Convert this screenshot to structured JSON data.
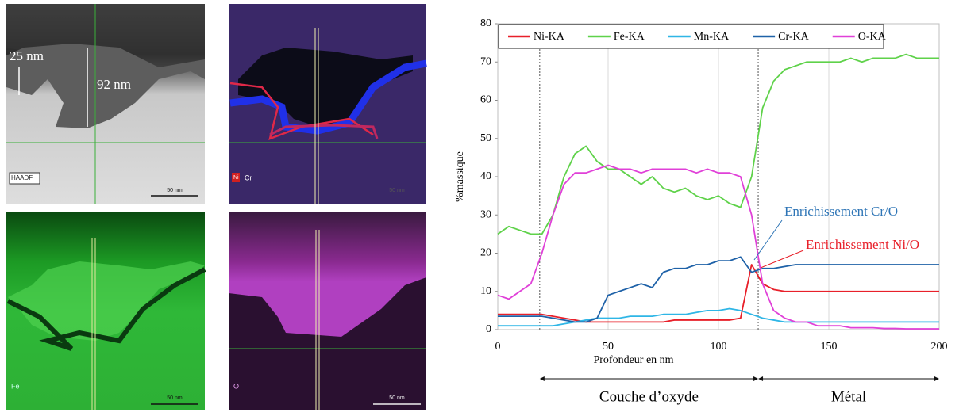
{
  "micrographs": [
    {
      "label": "HAADF",
      "scale": "50 nm"
    },
    {
      "label": "Cr",
      "tag": "Ni",
      "scale": "50 nm"
    },
    {
      "label": "Fe",
      "scale": "50 nm"
    },
    {
      "label": "O",
      "scale": "50 nm"
    }
  ],
  "dimensions": [
    "25 nm",
    "92 nm"
  ],
  "chart_data": {
    "type": "line",
    "xlabel": "Profondeur en nm",
    "ylabel": "%massique",
    "xlim": [
      0,
      200
    ],
    "ylim": [
      0,
      80
    ],
    "xticks": [
      0,
      50,
      100,
      150,
      200
    ],
    "yticks": [
      0,
      10,
      20,
      30,
      40,
      50,
      60,
      70,
      80
    ],
    "grid": "x",
    "x": [
      0,
      5,
      10,
      15,
      20,
      25,
      30,
      35,
      40,
      45,
      50,
      55,
      60,
      65,
      70,
      75,
      80,
      85,
      90,
      95,
      100,
      105,
      110,
      115,
      120,
      125,
      130,
      135,
      140,
      145,
      150,
      155,
      160,
      165,
      170,
      175,
      180,
      185,
      190,
      195,
      200
    ],
    "series": [
      {
        "name": "Ni-KA",
        "color": "#e8202a",
        "values": [
          4,
          4,
          4,
          4,
          4,
          3.5,
          3,
          2.5,
          2,
          2,
          2,
          2,
          2,
          2,
          2,
          2,
          2.5,
          2.5,
          2.5,
          2.5,
          2.5,
          2.5,
          3,
          17,
          12,
          10.5,
          10,
          10,
          10,
          10,
          10,
          10,
          10,
          10,
          10,
          10,
          10,
          10,
          10,
          10,
          10
        ]
      },
      {
        "name": "Fe-KA",
        "color": "#5fd24a",
        "values": [
          25,
          27,
          26,
          25,
          25,
          30,
          40,
          46,
          48,
          44,
          42,
          42,
          40,
          38,
          40,
          37,
          36,
          37,
          35,
          34,
          35,
          33,
          32,
          40,
          58,
          65,
          68,
          69,
          70,
          70,
          70,
          70,
          71,
          70,
          71,
          71,
          71,
          72,
          71,
          71,
          71
        ]
      },
      {
        "name": "Mn-KA",
        "color": "#2fb6e6",
        "values": [
          1,
          1,
          1,
          1,
          1,
          1,
          1.5,
          2,
          2.5,
          3,
          3,
          3,
          3.5,
          3.5,
          3.5,
          4,
          4,
          4,
          4.5,
          5,
          5,
          5.5,
          5,
          4,
          3,
          2.5,
          2,
          2,
          2,
          2,
          2,
          2,
          2,
          2,
          2,
          2,
          2,
          2,
          2,
          2,
          2
        ]
      },
      {
        "name": "Cr-KA",
        "color": "#1f62a8",
        "values": [
          3.5,
          3.5,
          3.5,
          3.5,
          3.5,
          3,
          2.5,
          2,
          2,
          3,
          9,
          10,
          11,
          12,
          11,
          15,
          16,
          16,
          17,
          17,
          18,
          18,
          19,
          15,
          16,
          16,
          16.5,
          17,
          17,
          17,
          17,
          17,
          17,
          17,
          17,
          17,
          17,
          17,
          17,
          17,
          17
        ]
      },
      {
        "name": "O-KA",
        "color": "#e040d8",
        "values": [
          9,
          8,
          10,
          12,
          20,
          30,
          38,
          41,
          41,
          42,
          43,
          42,
          42,
          41,
          42,
          42,
          42,
          42,
          41,
          42,
          41,
          41,
          40,
          30,
          12,
          5,
          3,
          2,
          2,
          1,
          1,
          1,
          0.5,
          0.5,
          0.5,
          0.3,
          0.3,
          0.2,
          0.2,
          0.2,
          0.2
        ]
      }
    ],
    "legend": "top",
    "vlines": [
      19,
      118
    ],
    "annotations": [
      {
        "text": "Enrichissement Cr/O",
        "color": "#2e75b6"
      },
      {
        "text": "Enrichissement Ni/O",
        "color": "#e8202a"
      }
    ],
    "regions": [
      {
        "label": "Couche d’oxyde",
        "from": 19,
        "to": 118
      },
      {
        "label": "Métal",
        "from": 118,
        "to": 200
      }
    ]
  }
}
